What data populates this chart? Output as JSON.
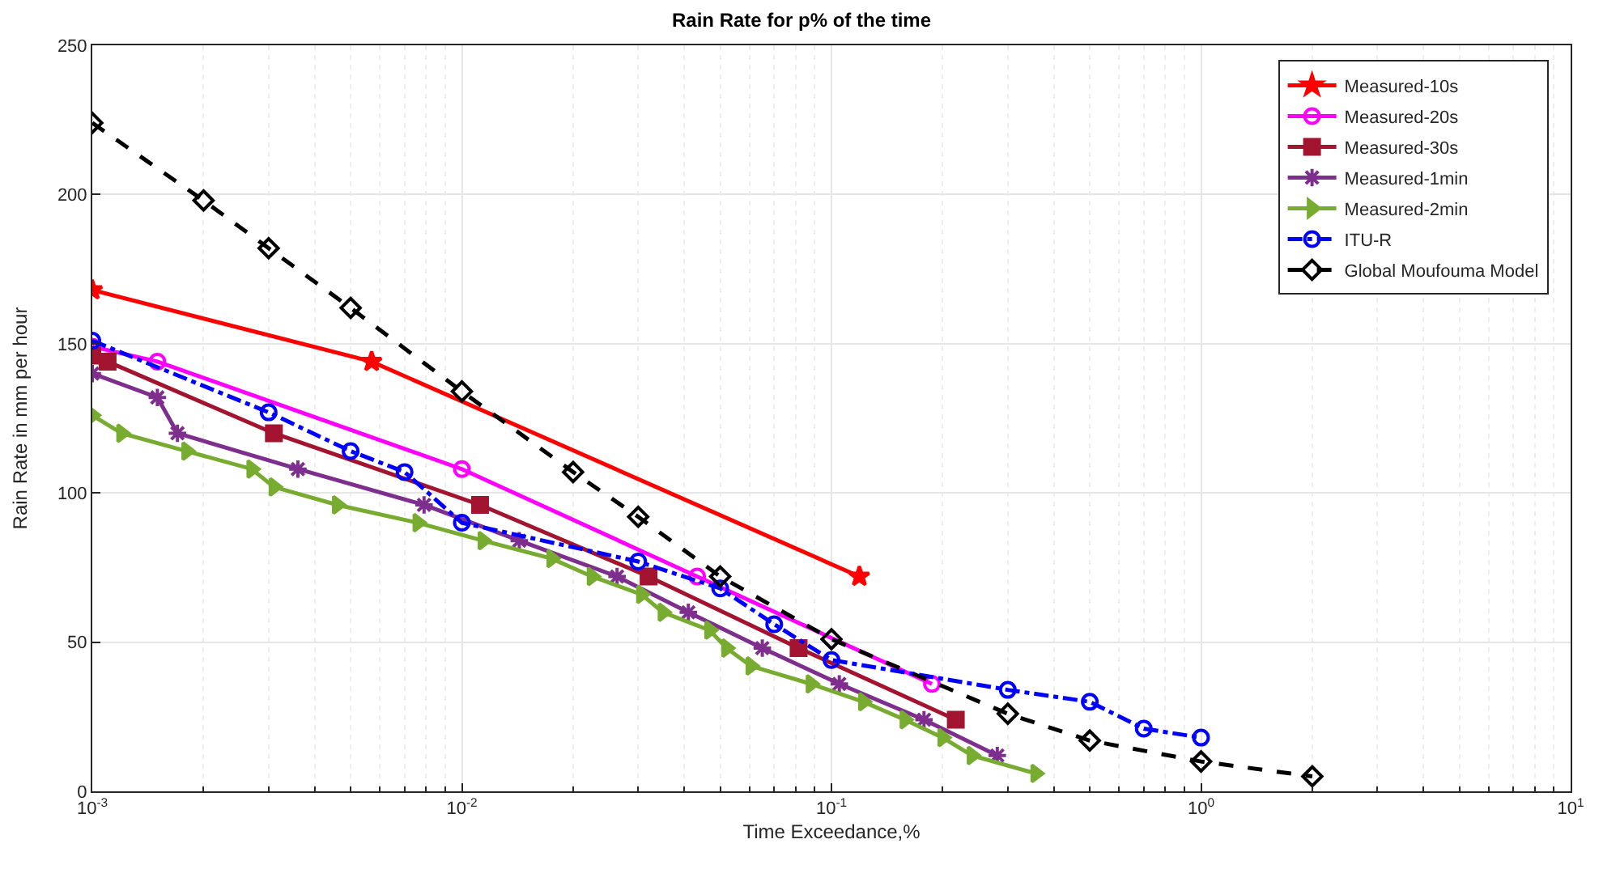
{
  "chart_data": {
    "type": "line",
    "title": "Rain Rate for p% of the time",
    "xlabel": "Time Exceedance,%",
    "ylabel": "Rain Rate in mm per hour",
    "log": "x",
    "grid": true,
    "legend": "top right",
    "xlim": [
      0.001,
      10
    ],
    "xticks": [
      {
        "value": 0.001,
        "label": "10$^{-3}$"
      },
      {
        "value": 0.01,
        "label": "10$^{-2}$"
      },
      {
        "value": 0.1,
        "label": "10$^{-1}$"
      },
      {
        "value": 1,
        "label": "10$^{0}$"
      },
      {
        "value": 10,
        "label": "10$^{1}$"
      }
    ],
    "ylim": [
      0,
      250
    ],
    "yticks": [
      0,
      50,
      100,
      150,
      200,
      250
    ],
    "series": [
      {
        "name": "Measured-10s",
        "color": "#ff0000",
        "marker": "star",
        "line_style": "solid",
        "x": [
          0.001,
          0.0057,
          0.119
        ],
        "values": [
          168,
          144,
          72
        ]
      },
      {
        "name": "Measured-20s",
        "color": "#ff00ff",
        "marker": "circle",
        "line_style": "solid",
        "x": [
          0.001,
          0.0015,
          0.01,
          0.0433,
          0.187
        ],
        "values": [
          149,
          144,
          108,
          72,
          36
        ]
      },
      {
        "name": "Measured-30s",
        "color": "#a2142f",
        "marker": "square",
        "line_style": "solid",
        "x": [
          0.001,
          0.0011,
          0.0031,
          0.0112,
          0.032,
          0.0815,
          0.217
        ],
        "values": [
          146,
          144,
          120,
          96,
          72,
          48,
          24
        ]
      },
      {
        "name": "Measured-1min",
        "color": "#7e2f8e",
        "marker": "cross",
        "line_style": "solid",
        "x": [
          0.001,
          0.0015,
          0.0017,
          0.0036,
          0.0079,
          0.0143,
          0.0263,
          0.041,
          0.065,
          0.105,
          0.178,
          0.281
        ],
        "values": [
          140,
          132,
          120,
          108,
          96,
          84,
          72,
          60,
          48,
          36,
          24,
          12
        ]
      },
      {
        "name": "Measured-2min",
        "color": "#77ac30",
        "marker": "triangle",
        "line_style": "solid",
        "x": [
          0.001,
          0.0012,
          0.0018,
          0.0027,
          0.0031,
          0.0046,
          0.0076,
          0.0114,
          0.0175,
          0.0225,
          0.0306,
          0.035,
          0.0468,
          0.052,
          0.0605,
          0.088,
          0.122,
          0.158,
          0.2,
          0.24,
          0.357
        ],
        "values": [
          126,
          120,
          114,
          108,
          102,
          96,
          90,
          84,
          78,
          72,
          66,
          60,
          54,
          48,
          42,
          36,
          30,
          24,
          18,
          12,
          6
        ]
      },
      {
        "name": "ITU-R",
        "color": "#0000ff",
        "marker": "circle",
        "line_style": "dashdot",
        "x": [
          0.001,
          0.003,
          0.005,
          0.007,
          0.01,
          0.03,
          0.05,
          0.07,
          0.1,
          0.3,
          0.5,
          0.7,
          1
        ],
        "values": [
          151,
          127,
          114,
          107,
          90,
          77,
          68,
          56,
          44,
          34,
          30,
          21,
          18
        ]
      },
      {
        "name": "Global Moufouma Model",
        "color": "#000000",
        "marker": "diamond",
        "line_style": "dashed",
        "x": [
          0.001,
          0.002,
          0.003,
          0.005,
          0.01,
          0.02,
          0.03,
          0.05,
          0.1,
          0.3,
          0.5,
          1,
          2
        ],
        "values": [
          224,
          198,
          182,
          162,
          134,
          107,
          92,
          72,
          51,
          26,
          17,
          10,
          5
        ]
      }
    ]
  }
}
